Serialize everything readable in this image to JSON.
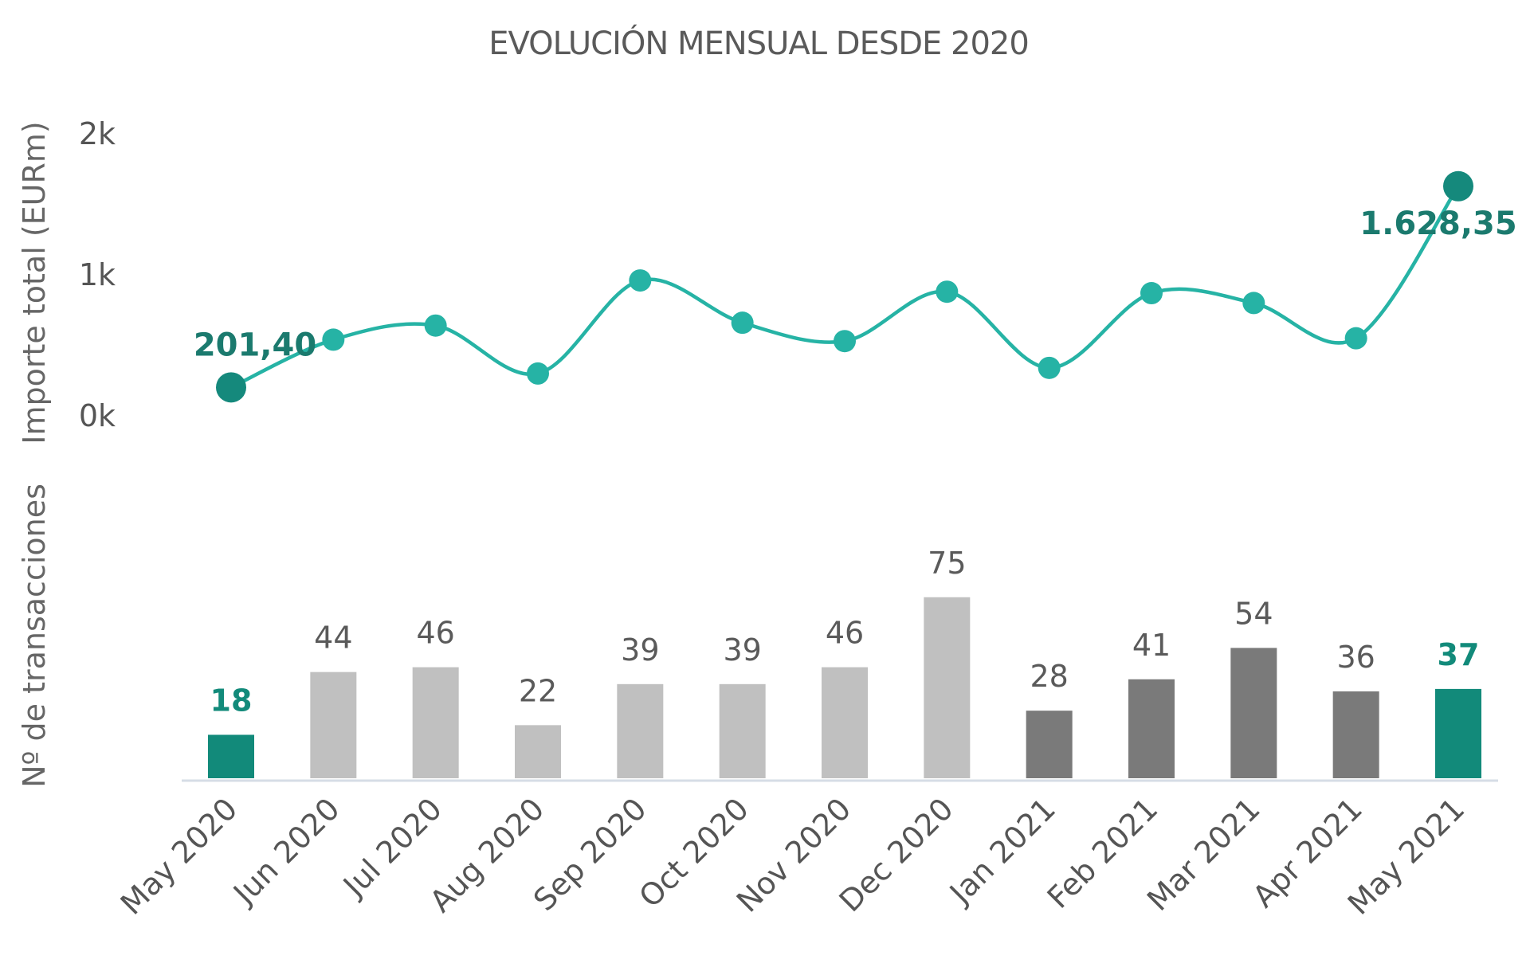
{
  "chart_data": {
    "type": "line+bar",
    "title": "EVOLUCIÓN MENSUAL DESDE 2020",
    "categories": [
      "May 2020",
      "Jun 2020",
      "Jul 2020",
      "Aug 2020",
      "Sep 2020",
      "Oct 2020",
      "Nov 2020",
      "Dec 2020",
      "Jan 2021",
      "Feb 2021",
      "Mar 2021",
      "Apr 2021",
      "May 2021"
    ],
    "line": {
      "ylabel": "Importe total (EURm)",
      "ylim": [
        0,
        2000
      ],
      "yticks": [
        "0k",
        "1k",
        "2k"
      ],
      "values": [
        201.4,
        540,
        640,
        300,
        960,
        660,
        530,
        880,
        340,
        870,
        800,
        550,
        1628.35
      ],
      "labels": {
        "first": "201,40",
        "last": "1.628,35"
      },
      "color": "#26b3a5",
      "end_marker_color": "#15897c"
    },
    "bars": {
      "ylabel": "Nº de transacciones",
      "values": [
        18,
        44,
        46,
        22,
        39,
        39,
        46,
        75,
        28,
        41,
        54,
        36,
        37
      ],
      "groups": [
        "highlight",
        "2020",
        "2020",
        "2020",
        "2020",
        "2020",
        "2020",
        "2020",
        "2021",
        "2021",
        "2021",
        "2021",
        "highlight"
      ],
      "colors": {
        "highlight": "#128a7a",
        "2020": "#c0c0c0",
        "2021": "#7a7a7a"
      }
    },
    "grid": false,
    "legend": "none"
  }
}
